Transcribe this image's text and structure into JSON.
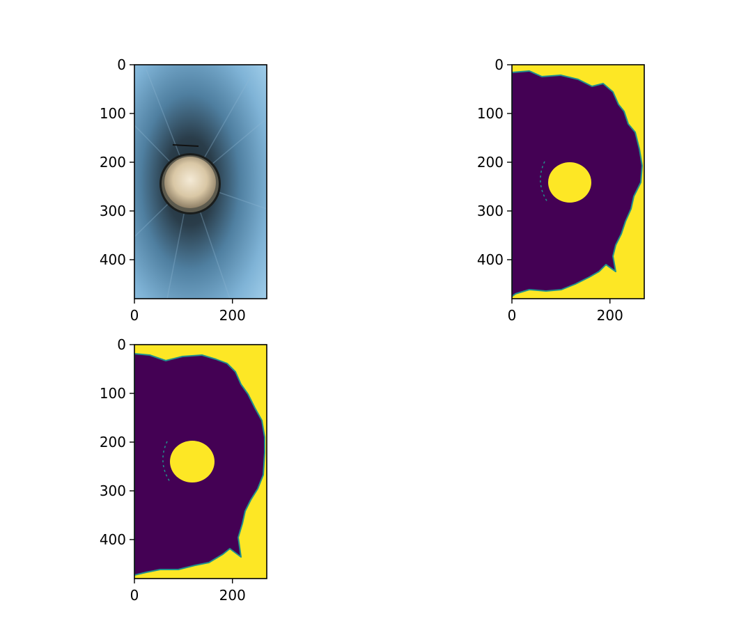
{
  "chart_data": [
    {
      "type": "image",
      "image": "rgb-photo-tube-lens",
      "title": "",
      "xlabel": "",
      "ylabel": "",
      "xlim": [
        0,
        270
      ],
      "ylim": [
        480,
        0
      ],
      "xticks": [
        {
          "value": 0,
          "label": "0"
        },
        {
          "value": 200,
          "label": "200"
        }
      ],
      "yticks": [
        {
          "value": 0,
          "label": "0"
        },
        {
          "value": 100,
          "label": "100"
        },
        {
          "value": 200,
          "label": "200"
        },
        {
          "value": 300,
          "label": "300"
        },
        {
          "value": 400,
          "label": "400"
        }
      ],
      "colors": {
        "sky": "#8ec3e0",
        "mid": "#5a8fb3",
        "dark": "#1c2a33",
        "lens": "#f2e6cf"
      }
    },
    {
      "type": "heatmap",
      "image": "binary-mask-viridis",
      "title": "",
      "xlabel": "",
      "ylabel": "",
      "xlim": [
        0,
        270
      ],
      "ylim": [
        480,
        0
      ],
      "xticks": [
        {
          "value": 0,
          "label": "0"
        },
        {
          "value": 200,
          "label": "200"
        }
      ],
      "yticks": [
        {
          "value": 0,
          "label": "0"
        },
        {
          "value": 100,
          "label": "100"
        },
        {
          "value": 200,
          "label": "200"
        },
        {
          "value": 300,
          "label": "300"
        },
        {
          "value": 400,
          "label": "400"
        }
      ],
      "colors": {
        "low": "#440154",
        "high": "#fde725",
        "edge": "#21918c"
      }
    },
    {
      "type": "heatmap",
      "image": "binary-mask-viridis",
      "title": "",
      "xlabel": "",
      "ylabel": "",
      "xlim": [
        0,
        270
      ],
      "ylim": [
        480,
        0
      ],
      "xticks": [
        {
          "value": 0,
          "label": "0"
        },
        {
          "value": 200,
          "label": "200"
        }
      ],
      "yticks": [
        {
          "value": 0,
          "label": "0"
        },
        {
          "value": 100,
          "label": "100"
        },
        {
          "value": 200,
          "label": "200"
        },
        {
          "value": 300,
          "label": "300"
        },
        {
          "value": 400,
          "label": "400"
        }
      ],
      "colors": {
        "low": "#440154",
        "high": "#fde725",
        "edge": "#21918c"
      }
    }
  ]
}
